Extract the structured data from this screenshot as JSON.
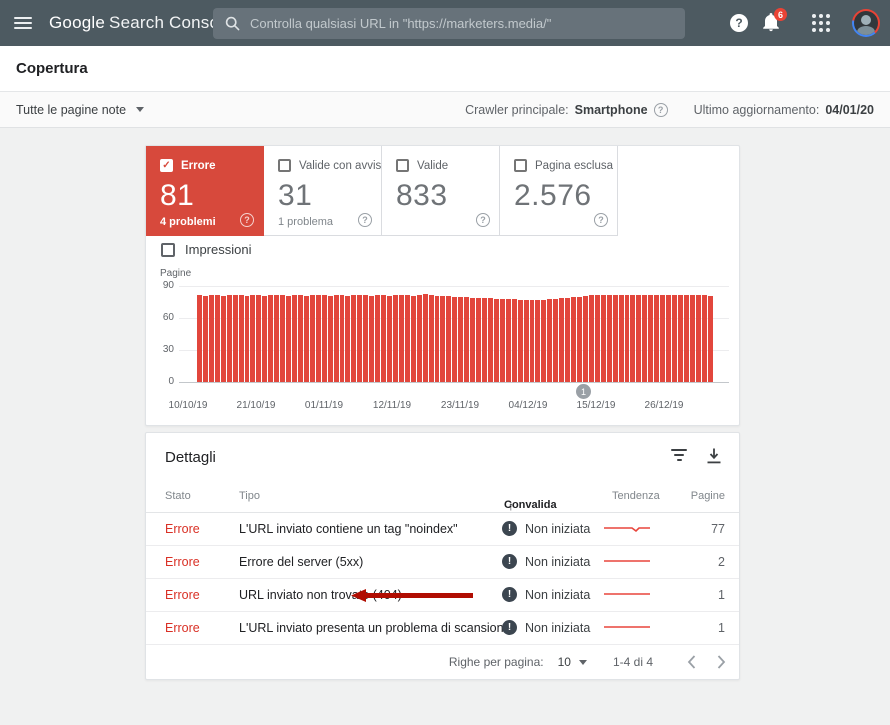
{
  "colors": {
    "header_bg": "#4d5a61",
    "card_red": "#d7493c",
    "bar_red": "#e2463c",
    "error_text": "#d93025",
    "arrow_red": "#b00d02"
  },
  "header": {
    "logo_google": "Google",
    "logo_product": "Search Console",
    "search_placeholder": "Controlla qualsiasi URL in \"https://marketers.media/\"",
    "notification_badge": "6",
    "help_glyph": "?"
  },
  "page_title": "Copertura",
  "filter_bar": {
    "scope": "Tutte le pagine note",
    "crawler_label": "Crawler principale:",
    "crawler_value": "Smartphone",
    "updated_label": "Ultimo aggiornamento:",
    "updated_value": "04/01/20"
  },
  "cards": [
    {
      "label": "Errore",
      "value": "81",
      "sub": "4 problemi",
      "selected": true
    },
    {
      "label": "Valide con avvisi",
      "value": "31",
      "sub": "1 problema",
      "selected": false
    },
    {
      "label": "Valide",
      "value": "833",
      "sub": "",
      "selected": false
    },
    {
      "label": "Pagina esclusa",
      "value": "2.576",
      "sub": "",
      "selected": false
    }
  ],
  "impressions_label": "Impressioni",
  "chart_data": {
    "type": "bar",
    "title": "",
    "ylabel": "Pagine",
    "ylim": [
      0,
      90
    ],
    "yticks": [
      90,
      60,
      30,
      0
    ],
    "grid": "horizontal",
    "x_labels": [
      "10/10/19",
      "21/10/19",
      "01/11/19",
      "12/11/19",
      "23/11/19",
      "04/12/19",
      "15/12/19",
      "26/12/19"
    ],
    "series": [
      {
        "name": "Errore",
        "color": "#e2463c",
        "values": [
          82,
          81,
          82,
          82,
          81,
          82,
          82,
          82,
          81,
          82,
          82,
          81,
          82,
          82,
          82,
          81,
          82,
          82,
          81,
          82,
          82,
          82,
          81,
          82,
          82,
          81,
          82,
          82,
          82,
          81,
          82,
          82,
          81,
          82,
          82,
          82,
          81,
          82,
          83,
          82,
          81,
          81,
          81,
          80,
          80,
          80,
          79,
          79,
          79,
          79,
          78,
          78,
          78,
          78,
          77,
          77,
          77,
          77,
          77,
          78,
          78,
          79,
          79,
          80,
          80,
          81,
          82,
          82,
          82,
          82,
          82,
          82,
          82,
          82,
          82,
          82,
          82,
          82,
          82,
          82,
          82,
          82,
          82,
          82,
          82,
          82,
          81
        ]
      }
    ],
    "marker": {
      "label": "1",
      "near_x_label": "15/12/19"
    }
  },
  "details": {
    "title": "Dettagli",
    "columns": {
      "stato": "Stato",
      "tipo": "Tipo",
      "convalida": "Convalida",
      "tendenza": "Tendenza",
      "pagine": "Pagine"
    },
    "sort": {
      "column": "Convalida",
      "direction_glyph": "↑"
    },
    "rows": [
      {
        "stato": "Errore",
        "tipo": "L'URL inviato contiene un tag \"noindex\"",
        "convalida": "Non iniziata",
        "tendenza": "flat-dip",
        "pagine": "77",
        "annotated": false
      },
      {
        "stato": "Errore",
        "tipo": "Errore del server (5xx)",
        "convalida": "Non iniziata",
        "tendenza": "flat",
        "pagine": "2",
        "annotated": false
      },
      {
        "stato": "Errore",
        "tipo": "URL inviato non trovato (404)",
        "convalida": "Non iniziata",
        "tendenza": "flat",
        "pagine": "1",
        "annotated": true
      },
      {
        "stato": "Errore",
        "tipo": "L'URL inviato presenta un problema di scansione",
        "convalida": "Non iniziata",
        "tendenza": "flat",
        "pagine": "1",
        "annotated": false
      }
    ],
    "pagination": {
      "rows_label": "Righe per pagina:",
      "rows_value": "10",
      "range": "1-4 di 4"
    }
  }
}
